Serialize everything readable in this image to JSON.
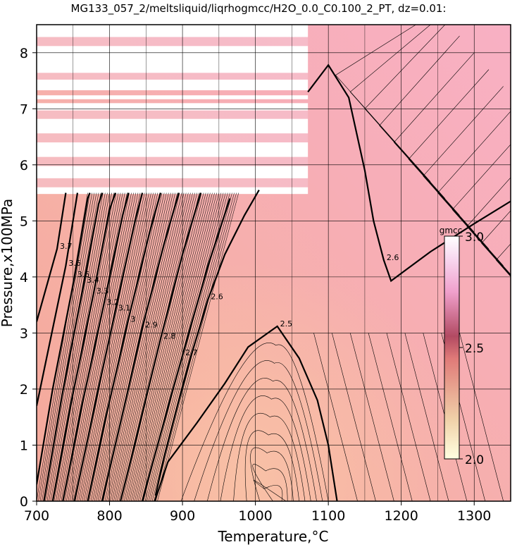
{
  "chart_data": {
    "type": "heatmap",
    "title": "MG133_057_2/meltsliquid/liqrhogmcc/H2O_0.0_C0.100_2_PT, dz=0.01:",
    "xlabel": "Temperature,°C",
    "ylabel": "Pressure,x100MPa",
    "xlim": [
      700,
      1350
    ],
    "ylim": [
      0,
      8.5
    ],
    "x_ticks": [
      700,
      800,
      900,
      1000,
      1100,
      1200,
      1300
    ],
    "y_ticks": [
      0,
      1,
      2,
      3,
      4,
      5,
      6,
      7,
      8
    ],
    "grid": true,
    "colorbar": {
      "unit": "gmcc",
      "range": [
        2.0,
        3.0
      ],
      "ticks": [
        "2.0",
        "2.5",
        "3.0"
      ],
      "colors": [
        "#ffffe0",
        "#f0c4a0",
        "#e07878",
        "#b04060",
        "#f4a0c8",
        "#ffffff"
      ]
    },
    "contour_interval": 0.01,
    "annotation_interval": 0.1,
    "contour_labels": [
      "3.7",
      "3.6",
      "3.5",
      "3.4",
      "3.3",
      "3.2",
      "3.1",
      "3",
      "2.9",
      "2.8",
      "2.7",
      "2.6",
      "2.5"
    ],
    "key_contours": [
      {
        "name": "2.6",
        "points": [
          [
            863,
            0.1
          ],
          [
            875,
            0.8
          ],
          [
            895,
            1.8
          ],
          [
            912,
            2.6
          ],
          [
            935,
            3.6
          ],
          [
            958,
            4.4
          ],
          [
            985,
            5.1
          ],
          [
            1005,
            5.55
          ]
        ]
      },
      {
        "name": "2.5",
        "points": [
          [
            862,
            0.0
          ],
          [
            880,
            0.7
          ],
          [
            920,
            1.4
          ],
          [
            958,
            2.1
          ],
          [
            990,
            2.75
          ],
          [
            1030,
            3.12
          ],
          [
            1060,
            2.55
          ],
          [
            1085,
            1.8
          ],
          [
            1100,
            1.0
          ],
          [
            1112,
            0.0
          ]
        ]
      },
      {
        "name": "2.6",
        "points": [
          [
            1072,
            7.3
          ],
          [
            1100,
            7.78
          ],
          [
            1128,
            7.2
          ],
          [
            1150,
            5.9
          ],
          [
            1162,
            5.0
          ],
          [
            1176,
            4.3
          ],
          [
            1186,
            3.93
          ],
          [
            1240,
            4.45
          ],
          [
            1300,
            4.95
          ],
          [
            1350,
            5.35
          ]
        ]
      },
      {
        "name": "2.7",
        "points": [
          [
            845,
            0.0
          ],
          [
            870,
            1.2
          ],
          [
            900,
            2.6
          ],
          [
            935,
            4.2
          ],
          [
            965,
            5.4
          ]
        ]
      },
      {
        "name": "2.8",
        "points": [
          [
            815,
            0.0
          ],
          [
            840,
            1.3
          ],
          [
            870,
            2.9
          ],
          [
            900,
            4.4
          ],
          [
            925,
            5.5
          ]
        ]
      },
      {
        "name": "2.9",
        "points": [
          [
            790,
            0.0
          ],
          [
            815,
            1.4
          ],
          [
            845,
            3.1
          ],
          [
            875,
            4.6
          ],
          [
            895,
            5.5
          ]
        ]
      },
      {
        "name": "3",
        "points": [
          [
            770,
            0.0
          ],
          [
            795,
            1.5
          ],
          [
            825,
            3.2
          ],
          [
            855,
            4.8
          ],
          [
            870,
            5.5
          ]
        ]
      },
      {
        "name": "3.1",
        "points": [
          [
            752,
            0.0
          ],
          [
            778,
            1.6
          ],
          [
            808,
            3.4
          ],
          [
            835,
            5.0
          ],
          [
            845,
            5.5
          ]
        ]
      },
      {
        "name": "3.2",
        "points": [
          [
            736,
            0.0
          ],
          [
            762,
            1.7
          ],
          [
            792,
            3.5
          ],
          [
            818,
            5.1
          ],
          [
            826,
            5.5
          ]
        ]
      },
      {
        "name": "3.3",
        "points": [
          [
            722,
            0.0
          ],
          [
            748,
            1.8
          ],
          [
            778,
            3.7
          ],
          [
            800,
            5.2
          ],
          [
            808,
            5.5
          ]
        ]
      },
      {
        "name": "3.4",
        "points": [
          [
            710,
            0.0
          ],
          [
            735,
            1.9
          ],
          [
            765,
            3.9
          ],
          [
            785,
            5.3
          ],
          [
            790,
            5.5
          ]
        ]
      },
      {
        "name": "3.5",
        "points": [
          [
            700,
            0.3
          ],
          [
            722,
            2.0
          ],
          [
            752,
            4.0
          ],
          [
            770,
            5.4
          ],
          [
            773,
            5.5
          ]
        ]
      },
      {
        "name": "3.6",
        "points": [
          [
            700,
            1.7
          ],
          [
            740,
            4.2
          ],
          [
            756,
            5.5
          ]
        ]
      },
      {
        "name": "3.7",
        "points": [
          [
            700,
            3.2
          ],
          [
            728,
            4.5
          ],
          [
            740,
            5.5
          ]
        ]
      }
    ],
    "missing_bands_y": [
      [
        5.48,
        5.6
      ],
      [
        5.76,
        5.98
      ],
      [
        6.14,
        6.4
      ],
      [
        6.56,
        6.82
      ],
      [
        6.97,
        7.1
      ],
      [
        7.17,
        7.24
      ],
      [
        7.33,
        7.52
      ],
      [
        7.64,
        8.12
      ],
      [
        8.28,
        8.5
      ]
    ],
    "missing_bands_xmax": 1072
  }
}
